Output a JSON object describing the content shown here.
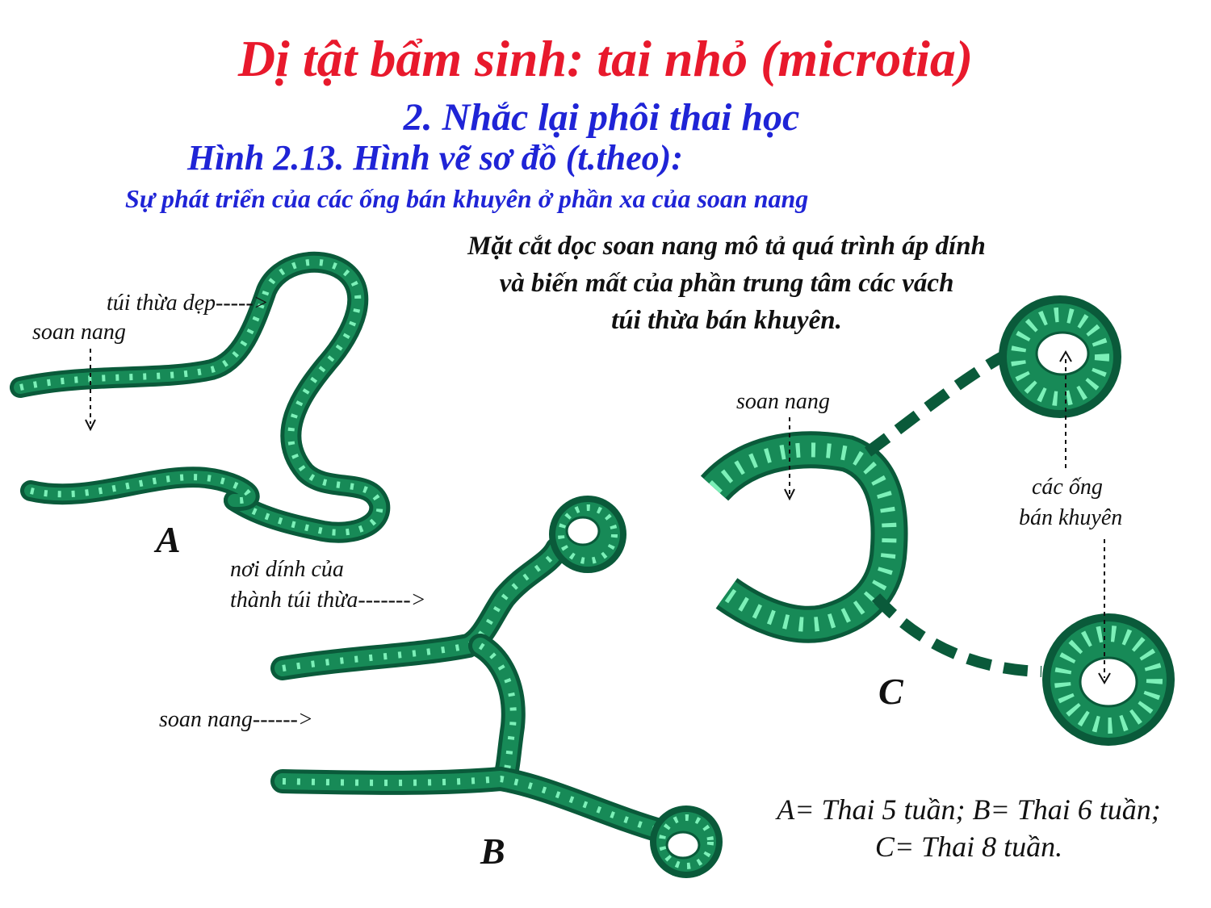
{
  "title": "Dị tật bẩm sinh: tai nhỏ (microtia)",
  "subtitle": "2. Nhắc lại phôi thai học",
  "figure_title": "Hình 2.13. Hình vẽ sơ đồ (t.theo):",
  "figure_caption": "Sự phát triển của các ống bán khuyên ở phần xa của soan nang",
  "description": {
    "line1": "Mặt cắt dọc soan nang mô tả quá trình áp dính",
    "line2": "và biến mất của phần trung tâm các vách",
    "line3": "túi thừa bán khuyên."
  },
  "labels": {
    "a_tui_thua_dep": "túi thừa dẹp----->",
    "a_soan_nang": "soan nang",
    "b_noi_dinh_line1": "nơi dính của",
    "b_noi_dinh_line2": "thành túi thừa------->",
    "b_soan_nang": "soan nang------>",
    "c_soan_nang": "soan nang",
    "c_cac_ong_line1": "các ống",
    "c_cac_ong_line2": "bán khuyên"
  },
  "figure_letters": {
    "a": "A",
    "b": "B",
    "c": "C"
  },
  "legend": {
    "line1": "A= Thai 5 tuần;  B= Thai 6 tuần;",
    "line2": "C= Thai 8 tuần."
  },
  "colors": {
    "title": "#e8192c",
    "subtitle": "#1f24d6",
    "tube_outline": "#0a5a3a",
    "tube_fill": "#1f9b63",
    "tube_dash": "#7cf0b8",
    "text": "#111111"
  }
}
